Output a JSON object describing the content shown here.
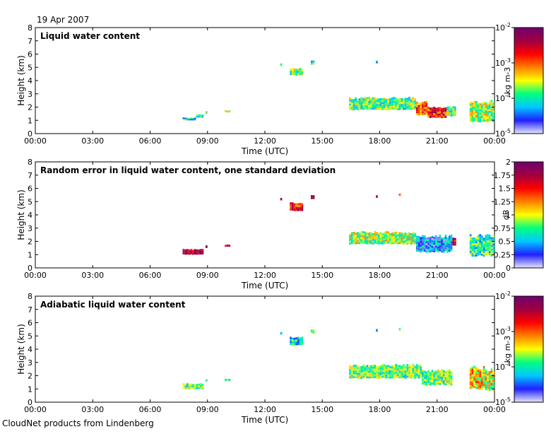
{
  "date_label": "19 Apr 2007",
  "footer": "CloudNet products from Lindenberg",
  "x_tick_labels": [
    "00:00",
    "03:00",
    "06:00",
    "09:00",
    "12:00",
    "15:00",
    "18:00",
    "21:00",
    "00:00"
  ],
  "y_tick_labels": [
    "0",
    "1",
    "2",
    "3",
    "4",
    "5",
    "6",
    "7",
    "8"
  ],
  "xlabel": "Time (UTC)",
  "ylabel": "Height (km)",
  "colors": {
    "colormap": [
      "#e6e6ff",
      "#2020ff",
      "#00c8ff",
      "#00ff80",
      "#ffff00",
      "#ff8000",
      "#ff0000",
      "#a00040",
      "#700070"
    ]
  },
  "chart_data": [
    {
      "type": "heatmap",
      "title": "Liquid water content",
      "xlabel": "Time (UTC)",
      "ylabel": "Height (km)",
      "xlim": [
        0,
        24
      ],
      "ylim": [
        0,
        8
      ],
      "colorbar": {
        "scale": "log",
        "range": [
          1e-05,
          0.01
        ],
        "unit": "kg m-3",
        "ticks": [
          -5,
          -4,
          -3,
          -2
        ]
      },
      "regions": [
        {
          "t0": 7.7,
          "t1": 8.4,
          "h0": 1.0,
          "h1": 1.2,
          "v": 0.3
        },
        {
          "t0": 8.4,
          "t1": 8.8,
          "h0": 1.2,
          "h1": 1.45,
          "v": 0.35
        },
        {
          "t0": 8.9,
          "t1": 9.0,
          "h0": 1.5,
          "h1": 1.7,
          "v": 0.4
        },
        {
          "t0": 9.9,
          "t1": 10.2,
          "h0": 1.6,
          "h1": 1.75,
          "v": 0.45
        },
        {
          "t0": 12.8,
          "t1": 12.9,
          "h0": 5.1,
          "h1": 5.3,
          "v": 0.5
        },
        {
          "t0": 13.3,
          "t1": 14.0,
          "h0": 4.4,
          "h1": 4.9,
          "v": 0.4
        },
        {
          "t0": 14.4,
          "t1": 14.6,
          "h0": 5.2,
          "h1": 5.5,
          "v": 0.35
        },
        {
          "t0": 17.8,
          "t1": 17.9,
          "h0": 5.3,
          "h1": 5.5,
          "v": 0.3
        },
        {
          "t0": 16.4,
          "t1": 19.9,
          "h0": 1.8,
          "h1": 2.7,
          "v": 0.4
        },
        {
          "t0": 19.9,
          "t1": 20.5,
          "h0": 1.4,
          "h1": 2.4,
          "v": 0.7
        },
        {
          "t0": 20.5,
          "t1": 21.5,
          "h0": 1.2,
          "h1": 2.0,
          "v": 0.75
        },
        {
          "t0": 21.5,
          "t1": 22.0,
          "h0": 1.3,
          "h1": 2.0,
          "v": 0.4
        },
        {
          "t0": 22.7,
          "t1": 24.0,
          "h0": 0.9,
          "h1": 2.4,
          "v": 0.45
        }
      ]
    },
    {
      "type": "heatmap",
      "title": "Random error in liquid water content, one standard deviation",
      "xlabel": "Time (UTC)",
      "ylabel": "Height (km)",
      "xlim": [
        0,
        24
      ],
      "ylim": [
        0,
        8
      ],
      "colorbar": {
        "scale": "linear",
        "range": [
          0,
          2
        ],
        "unit": "dB",
        "ticks": [
          "0",
          "0.25",
          "0.5",
          "0.75",
          "1",
          "1.25",
          "1.5",
          "1.75",
          "2"
        ]
      },
      "regions": [
        {
          "t0": 7.7,
          "t1": 8.8,
          "h0": 1.0,
          "h1": 1.4,
          "v": 0.9
        },
        {
          "t0": 8.9,
          "t1": 9.0,
          "h0": 1.5,
          "h1": 1.7,
          "v": 0.9
        },
        {
          "t0": 9.9,
          "t1": 10.2,
          "h0": 1.6,
          "h1": 1.75,
          "v": 0.9
        },
        {
          "t0": 12.8,
          "t1": 12.9,
          "h0": 5.1,
          "h1": 5.3,
          "v": 0.9
        },
        {
          "t0": 13.3,
          "t1": 14.0,
          "h0": 4.3,
          "h1": 4.9,
          "v": 0.75
        },
        {
          "t0": 14.4,
          "t1": 14.6,
          "h0": 5.2,
          "h1": 5.5,
          "v": 0.9
        },
        {
          "t0": 17.8,
          "t1": 17.9,
          "h0": 5.3,
          "h1": 5.5,
          "v": 0.9
        },
        {
          "t0": 19.0,
          "t1": 19.1,
          "h0": 5.4,
          "h1": 5.6,
          "v": 0.55
        },
        {
          "t0": 16.4,
          "t1": 19.9,
          "h0": 1.8,
          "h1": 2.7,
          "v": 0.45
        },
        {
          "t0": 19.9,
          "t1": 21.8,
          "h0": 1.2,
          "h1": 2.4,
          "v": 0.2
        },
        {
          "t0": 21.8,
          "t1": 22.0,
          "h0": 1.7,
          "h1": 2.3,
          "v": 0.85
        },
        {
          "t0": 22.7,
          "t1": 24.0,
          "h0": 0.9,
          "h1": 2.4,
          "v": 0.35
        }
      ]
    },
    {
      "type": "heatmap",
      "title": "Adiabatic liquid water content",
      "xlabel": "Time (UTC)",
      "ylabel": "Height (km)",
      "xlim": [
        0,
        24
      ],
      "ylim": [
        0,
        8
      ],
      "colorbar": {
        "scale": "log",
        "range": [
          1e-05,
          0.01
        ],
        "unit": "kg m-3",
        "ticks": [
          -5,
          -4,
          -3,
          -2
        ]
      },
      "regions": [
        {
          "t0": 7.7,
          "t1": 8.8,
          "h0": 1.0,
          "h1": 1.4,
          "v": 0.4
        },
        {
          "t0": 8.9,
          "t1": 9.0,
          "h0": 1.5,
          "h1": 1.7,
          "v": 0.35
        },
        {
          "t0": 9.9,
          "t1": 10.2,
          "h0": 1.6,
          "h1": 1.75,
          "v": 0.35
        },
        {
          "t0": 12.8,
          "t1": 12.9,
          "h0": 5.1,
          "h1": 5.3,
          "v": 0.3
        },
        {
          "t0": 13.3,
          "t1": 14.0,
          "h0": 4.3,
          "h1": 4.9,
          "v": 0.3
        },
        {
          "t0": 14.4,
          "t1": 14.6,
          "h0": 5.2,
          "h1": 5.5,
          "v": 0.3
        },
        {
          "t0": 17.8,
          "t1": 17.9,
          "h0": 5.3,
          "h1": 5.5,
          "v": 0.3
        },
        {
          "t0": 19.0,
          "t1": 19.1,
          "h0": 5.4,
          "h1": 5.6,
          "v": 0.3
        },
        {
          "t0": 16.4,
          "t1": 20.2,
          "h0": 1.8,
          "h1": 2.8,
          "v": 0.4
        },
        {
          "t0": 20.2,
          "t1": 21.8,
          "h0": 1.3,
          "h1": 2.4,
          "v": 0.4
        },
        {
          "t0": 22.7,
          "t1": 23.5,
          "h0": 1.0,
          "h1": 2.6,
          "v": 0.55
        },
        {
          "t0": 23.5,
          "t1": 24.0,
          "h0": 0.9,
          "h1": 2.4,
          "v": 0.5
        }
      ]
    }
  ]
}
